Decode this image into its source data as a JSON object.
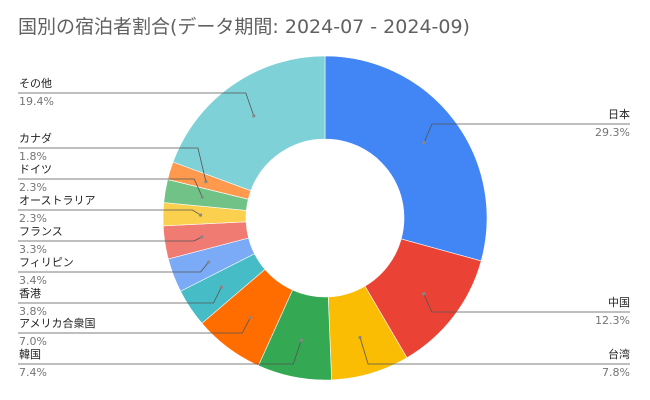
{
  "chart_data": {
    "type": "donut",
    "title": "国別の宿泊者割合(データ期間: 2024-07 - 2024-09)",
    "legend": "none",
    "slices": [
      {
        "label": "日本",
        "value": 29.3,
        "display": "29.3%",
        "color": "#4285f4"
      },
      {
        "label": "中国",
        "value": 12.3,
        "display": "12.3%",
        "color": "#ea4335"
      },
      {
        "label": "台湾",
        "value": 7.8,
        "display": "7.8%",
        "color": "#fbbc04"
      },
      {
        "label": "韓国",
        "value": 7.4,
        "display": "7.4%",
        "color": "#34a853"
      },
      {
        "label": "アメリカ合衆国",
        "value": 7.0,
        "display": "7.0%",
        "color": "#ff6d01"
      },
      {
        "label": "香港",
        "value": 3.8,
        "display": "3.8%",
        "color": "#46bdc6"
      },
      {
        "label": "フィリピン",
        "value": 3.4,
        "display": "3.4%",
        "color": "#7baaf7"
      },
      {
        "label": "フランス",
        "value": 3.3,
        "display": "3.3%",
        "color": "#f07b72"
      },
      {
        "label": "オーストラリア",
        "value": 2.3,
        "display": "2.3%",
        "color": "#fcd04f"
      },
      {
        "label": "ドイツ",
        "value": 2.3,
        "display": "2.3%",
        "color": "#71c287"
      },
      {
        "label": "カナダ",
        "value": 1.8,
        "display": "1.8%",
        "color": "#ff994d"
      },
      {
        "label": "その他",
        "value": 19.4,
        "display": "19.4%",
        "color": "#7ed1d7"
      }
    ]
  }
}
